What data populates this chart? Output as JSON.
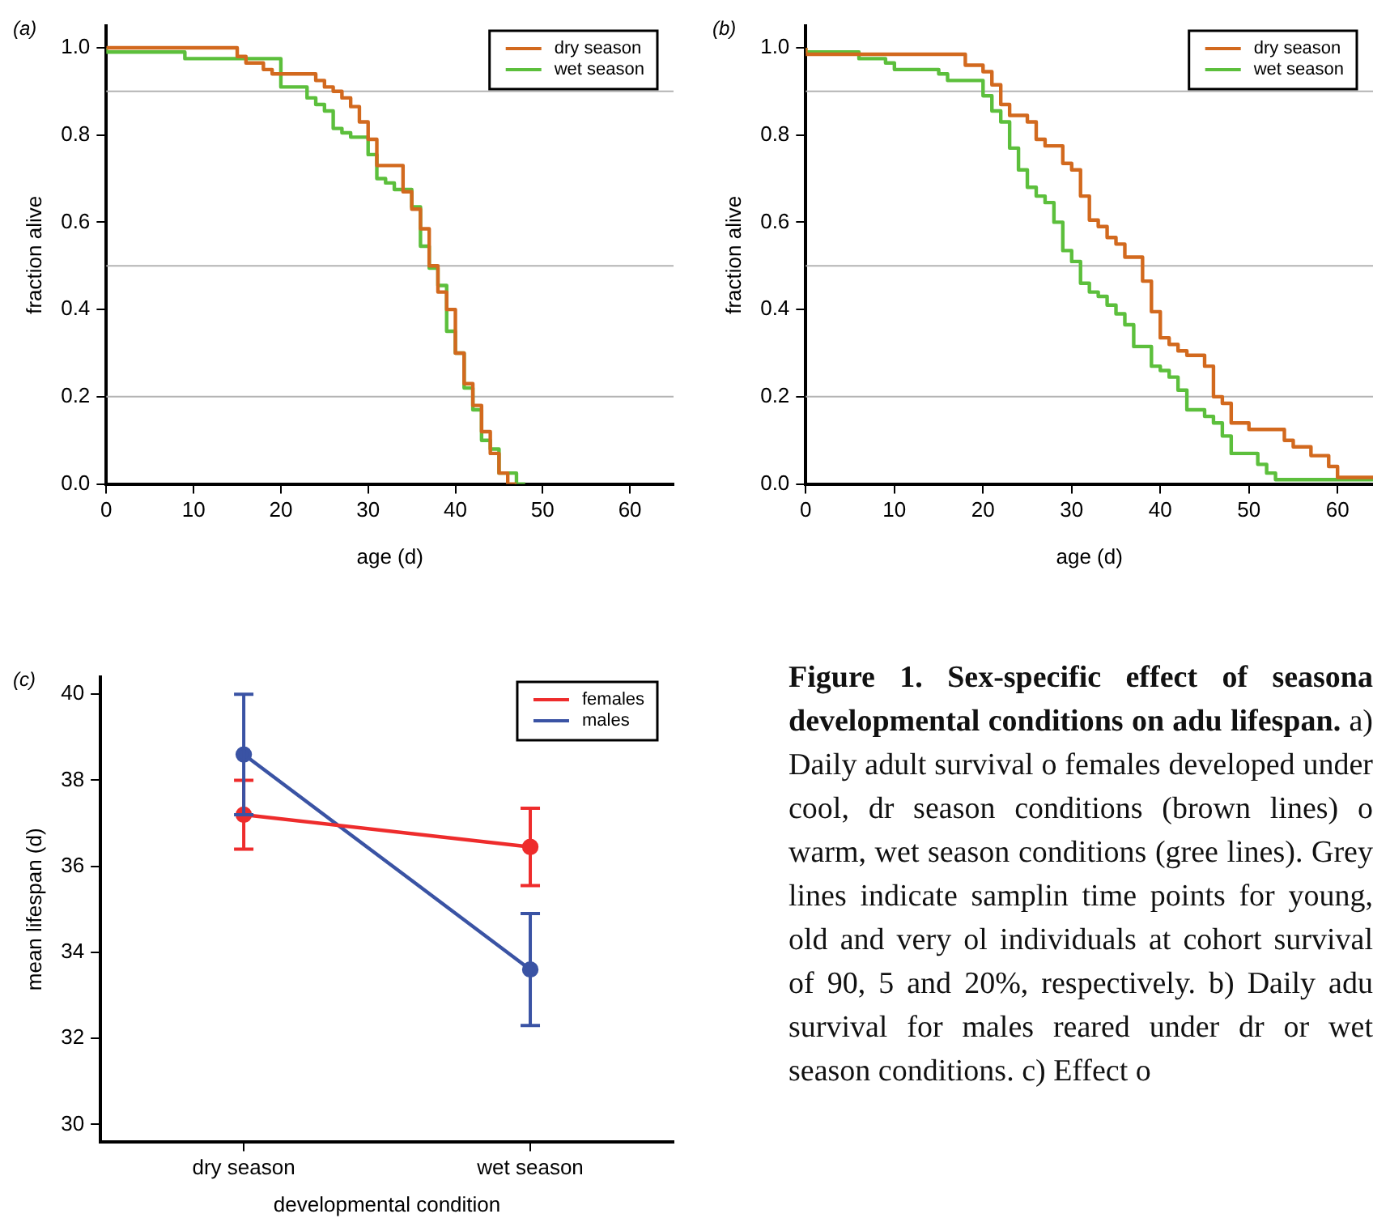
{
  "chart_data": [
    {
      "type": "step",
      "xlabel": "age (d)",
      "ylabel": "fraction alive",
      "annotations": [
        "(a)"
      ],
      "xlim": [
        0,
        65
      ],
      "ylim": [
        0,
        1.05
      ],
      "xticks": [
        0,
        10,
        20,
        30,
        40,
        50,
        60
      ],
      "yticks": [
        {
          "value": 0,
          "label": "0.0"
        },
        {
          "value": 0.2,
          "label": "0.2"
        },
        {
          "value": 0.4,
          "label": "0.4"
        },
        {
          "value": 0.6,
          "label": "0.6"
        },
        {
          "value": 0.8,
          "label": "0.8"
        },
        {
          "value": 1,
          "label": "1.0"
        }
      ],
      "legend": "top right",
      "marker": "none",
      "ref_lines": [
        {
          "axis": "y",
          "value": 0.9,
          "color": "#b3b3b3"
        },
        {
          "axis": "y",
          "value": 0.5,
          "color": "#b3b3b3"
        },
        {
          "axis": "y",
          "value": 0.2,
          "color": "#b3b3b3"
        }
      ],
      "series": [
        {
          "name": "dry season",
          "color": "#d2691e",
          "x": [
            0,
            15,
            16,
            18,
            19,
            24,
            25,
            26,
            27,
            28,
            29,
            30,
            31,
            34,
            35,
            36,
            37,
            38,
            39,
            40,
            41,
            42,
            43,
            44,
            45,
            46,
            47
          ],
          "values": [
            1,
            1,
            0.98,
            0.965,
            0.95,
            0.94,
            0.925,
            0.91,
            0.9,
            0.885,
            0.865,
            0.83,
            0.79,
            0.73,
            0.67,
            0.63,
            0.585,
            0.5,
            0.44,
            0.4,
            0.3,
            0.23,
            0.18,
            0.12,
            0.07,
            0.025,
            0
          ]
        },
        {
          "name": "wet season",
          "color": "#5cbf3c",
          "x": [
            0,
            9,
            20,
            23,
            24,
            25,
            26,
            27,
            28,
            30,
            31,
            32,
            33,
            35,
            36,
            37,
            38,
            39,
            40,
            41,
            42,
            43,
            44,
            45,
            47,
            48
          ],
          "values": [
            1,
            0.99,
            0.975,
            0.91,
            0.885,
            0.87,
            0.855,
            0.815,
            0.805,
            0.795,
            0.755,
            0.7,
            0.69,
            0.675,
            0.635,
            0.545,
            0.495,
            0.455,
            0.35,
            0.3,
            0.22,
            0.17,
            0.1,
            0.08,
            0.025,
            0
          ]
        }
      ]
    },
    {
      "type": "step",
      "xlabel": "age (d)",
      "ylabel": "fraction alive",
      "annotations": [
        "(b)"
      ],
      "xlim": [
        0,
        64
      ],
      "ylim": [
        0,
        1.05
      ],
      "xticks": [
        0,
        10,
        20,
        30,
        40,
        50,
        60
      ],
      "yticks": [
        {
          "value": 0,
          "label": "0.0"
        },
        {
          "value": 0.2,
          "label": "0.2"
        },
        {
          "value": 0.4,
          "label": "0.4"
        },
        {
          "value": 0.6,
          "label": "0.6"
        },
        {
          "value": 0.8,
          "label": "0.8"
        },
        {
          "value": 1,
          "label": "1.0"
        }
      ],
      "legend": "top right",
      "marker": "none",
      "ref_lines": [
        {
          "axis": "y",
          "value": 0.9,
          "color": "#b3b3b3"
        },
        {
          "axis": "y",
          "value": 0.5,
          "color": "#b3b3b3"
        },
        {
          "axis": "y",
          "value": 0.2,
          "color": "#b3b3b3"
        }
      ],
      "series": [
        {
          "name": "dry season",
          "color": "#d2691e",
          "x": [
            0,
            18,
            20,
            21,
            22,
            23,
            25,
            26,
            27,
            29,
            30,
            31,
            32,
            33,
            34,
            35,
            36,
            38,
            39,
            40,
            41,
            42,
            43,
            45,
            46,
            47,
            48,
            50,
            54,
            55,
            57,
            59,
            60,
            63,
            64
          ],
          "values": [
            1,
            0.985,
            0.96,
            0.945,
            0.915,
            0.87,
            0.845,
            0.83,
            0.79,
            0.775,
            0.735,
            0.72,
            0.66,
            0.605,
            0.59,
            0.565,
            0.55,
            0.52,
            0.465,
            0.395,
            0.335,
            0.32,
            0.305,
            0.295,
            0.27,
            0.2,
            0.185,
            0.14,
            0.125,
            0.1,
            0.085,
            0.065,
            0.04,
            0.015,
            0.015
          ]
        },
        {
          "name": "wet season",
          "color": "#5cbf3c",
          "x": [
            0,
            6,
            9,
            10,
            15,
            16,
            20,
            21,
            22,
            23,
            24,
            25,
            26,
            27,
            28,
            29,
            30,
            31,
            32,
            33,
            34,
            35,
            36,
            37,
            39,
            40,
            41,
            42,
            43,
            45,
            46,
            47,
            48,
            51,
            52,
            53,
            60,
            64
          ],
          "values": [
            1,
            0.99,
            0.975,
            0.965,
            0.95,
            0.94,
            0.925,
            0.89,
            0.855,
            0.83,
            0.77,
            0.72,
            0.68,
            0.66,
            0.645,
            0.6,
            0.535,
            0.51,
            0.46,
            0.44,
            0.43,
            0.41,
            0.39,
            0.365,
            0.315,
            0.27,
            0.26,
            0.245,
            0.215,
            0.17,
            0.155,
            0.14,
            0.11,
            0.07,
            0.045,
            0.025,
            0.01,
            0.01
          ]
        }
      ]
    },
    {
      "type": "line",
      "xlabel": "developmental condition",
      "ylabel": "mean lifespan (d)",
      "annotations": [
        "(c)"
      ],
      "categories": [
        "dry season",
        "wet season"
      ],
      "ylim": [
        29.6,
        40.4
      ],
      "yticks": [
        30,
        32,
        34,
        36,
        38,
        40
      ],
      "legend": "top right",
      "marker": "circle",
      "series": [
        {
          "name": "females",
          "color": "#ee2c2c",
          "values": [
            37.2,
            36.45
          ],
          "errors": [
            [
              36.4,
              38.0
            ],
            [
              35.55,
              37.35
            ]
          ]
        },
        {
          "name": "males",
          "color": "#3a53a4",
          "values": [
            38.6,
            33.6
          ],
          "errors": [
            [
              37.2,
              40.0
            ],
            [
              32.3,
              34.9
            ]
          ]
        }
      ]
    },
    {
      "type": "other",
      "title": "Figure 1. Sex-specific effect of seasona developmental conditions on adu lifespan.",
      "annotations": [
        "a) Daily adult survival o females developed under cool, dr season conditions (brown lines) o warm, wet season conditions (gree lines). Grey lines indicate samplin time points for young, old and very ol individuals at cohort survival of 90, 5 and 20%, respectively. b) Daily adu survival for males reared under dr or wet season conditions. c) Effect o"
      ]
    }
  ]
}
